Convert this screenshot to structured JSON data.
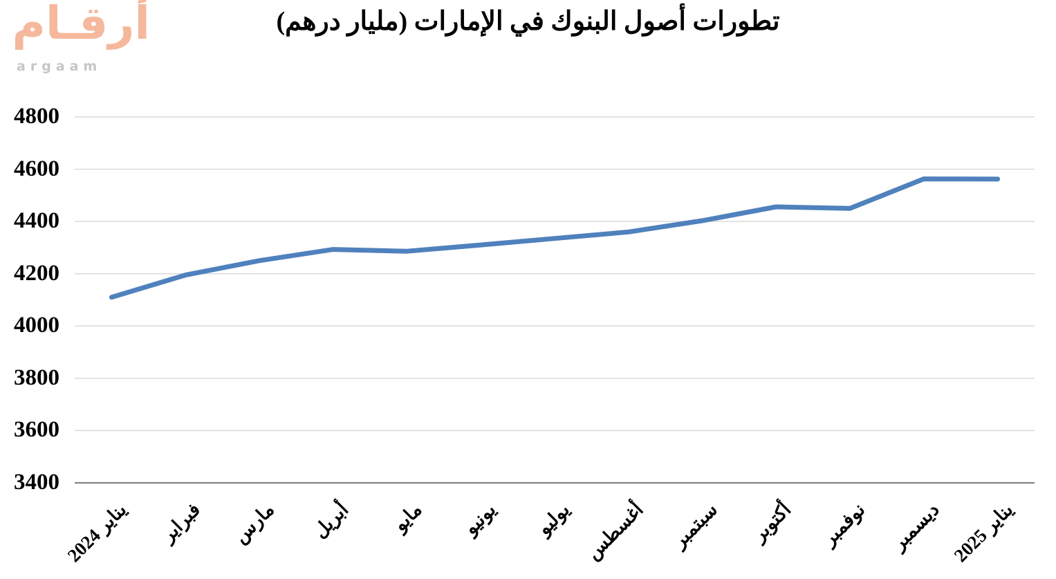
{
  "logo": {
    "arabic_text": "أرقـام",
    "latin_text": "argaam",
    "arabic_color": "#F5B89C",
    "latin_color": "#C6C6C6"
  },
  "chart_data": {
    "type": "line",
    "title": "تطورات أصول البنوك في الإمارات (مليار درهم)",
    "categories": [
      "يناير 2024",
      "فبراير",
      "مارس",
      "أبريل",
      "مايو",
      "يونيو",
      "يوليو",
      "أغسطس",
      "سبتمبر",
      "أكتوبر",
      "نوفمبر",
      "ديسمبر",
      "يناير 2025"
    ],
    "values": [
      4110,
      4195,
      4250,
      4293,
      4286,
      4310,
      4335,
      4360,
      4403,
      4456,
      4450,
      4563,
      4562
    ],
    "xlabel": "",
    "ylabel": "",
    "ylim": [
      3400,
      4800
    ],
    "ytick_step": 200,
    "yticks": [
      4800,
      4600,
      4400,
      4200,
      4000,
      3800,
      3600,
      3400
    ],
    "grid": true,
    "legend": false,
    "line_color": "#4F81BD",
    "gridline_color": "#D9D9D9",
    "axis_line_color": "#848484",
    "label_color": "#000000"
  }
}
